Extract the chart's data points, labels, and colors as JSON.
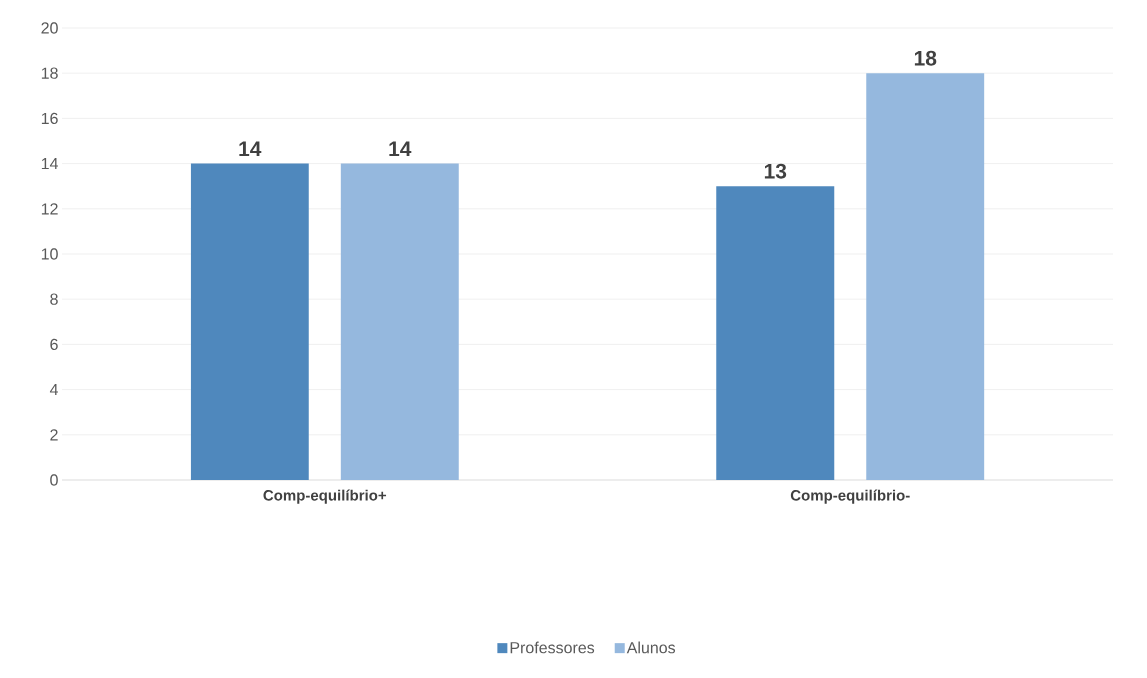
{
  "chart_data": {
    "type": "bar",
    "categories": [
      "Comp-equilíbrio+",
      "Comp-equilíbrio-"
    ],
    "series": [
      {
        "name": "Professores",
        "color": "#4f88bd",
        "values": [
          14,
          13
        ]
      },
      {
        "name": "Alunos",
        "color": "#95b8de",
        "values": [
          14,
          18
        ]
      }
    ],
    "ylim": [
      0,
      20
    ],
    "yticks": [
      0,
      2,
      4,
      6,
      8,
      10,
      12,
      14,
      16,
      18,
      20
    ],
    "grid": "y",
    "legend": "bottom",
    "data_labels": true
  }
}
